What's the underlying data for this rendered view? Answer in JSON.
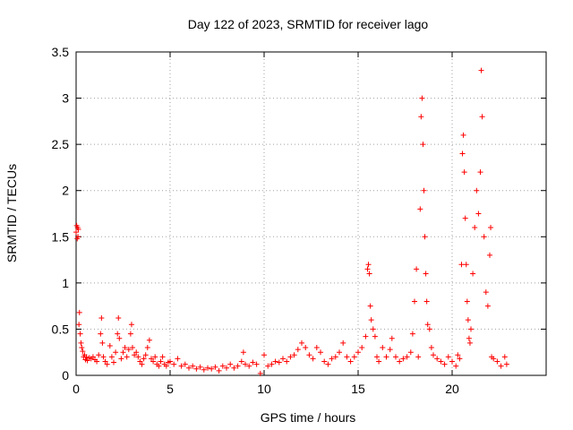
{
  "chart_data": {
    "type": "scatter",
    "title": "Day 122 of 2023, SRMTID for receiver lago",
    "xlabel": "GPS time / hours",
    "ylabel": "SRMTID / TECUs",
    "xlim": [
      0,
      25
    ],
    "ylim": [
      0,
      3.5
    ],
    "x_ticks": [
      0,
      5,
      10,
      15,
      20
    ],
    "x_tick_labels": [
      "0",
      "5",
      "10",
      "15",
      "20"
    ],
    "y_ticks": [
      0,
      0.5,
      1,
      1.5,
      2,
      2.5,
      3,
      3.5
    ],
    "y_tick_labels": [
      "0",
      "0.5",
      "1",
      "1.5",
      "2",
      "2.5",
      "3",
      "3.5"
    ],
    "grid": true,
    "marker": "+",
    "color": "#ff0000",
    "series": [
      {
        "name": "SRMTID",
        "points": [
          [
            0.0,
            1.55
          ],
          [
            0.03,
            1.62
          ],
          [
            0.06,
            1.48
          ],
          [
            0.08,
            1.6
          ],
          [
            0.1,
            1.5
          ],
          [
            0.12,
            1.58
          ],
          [
            0.15,
            0.55
          ],
          [
            0.18,
            0.68
          ],
          [
            0.22,
            0.45
          ],
          [
            0.26,
            0.35
          ],
          [
            0.3,
            0.3
          ],
          [
            0.35,
            0.26
          ],
          [
            0.4,
            0.2
          ],
          [
            0.45,
            0.22
          ],
          [
            0.5,
            0.17
          ],
          [
            0.55,
            0.2
          ],
          [
            0.6,
            0.16
          ],
          [
            0.7,
            0.19
          ],
          [
            0.8,
            0.18
          ],
          [
            0.9,
            0.2
          ],
          [
            1.0,
            0.17
          ],
          [
            1.1,
            0.15
          ],
          [
            1.2,
            0.22
          ],
          [
            1.3,
            0.45
          ],
          [
            1.35,
            0.62
          ],
          [
            1.4,
            0.35
          ],
          [
            1.45,
            0.2
          ],
          [
            1.55,
            0.15
          ],
          [
            1.65,
            0.12
          ],
          [
            1.8,
            0.32
          ],
          [
            1.9,
            0.2
          ],
          [
            2.0,
            0.14
          ],
          [
            2.1,
            0.25
          ],
          [
            2.2,
            0.45
          ],
          [
            2.25,
            0.62
          ],
          [
            2.3,
            0.4
          ],
          [
            2.4,
            0.18
          ],
          [
            2.5,
            0.25
          ],
          [
            2.6,
            0.3
          ],
          [
            2.7,
            0.2
          ],
          [
            2.8,
            0.28
          ],
          [
            2.9,
            0.45
          ],
          [
            2.95,
            0.55
          ],
          [
            3.0,
            0.3
          ],
          [
            3.1,
            0.22
          ],
          [
            3.2,
            0.25
          ],
          [
            3.3,
            0.2
          ],
          [
            3.4,
            0.15
          ],
          [
            3.5,
            0.12
          ],
          [
            3.6,
            0.18
          ],
          [
            3.7,
            0.22
          ],
          [
            3.8,
            0.3
          ],
          [
            3.9,
            0.38
          ],
          [
            4.0,
            0.18
          ],
          [
            4.1,
            0.15
          ],
          [
            4.2,
            0.2
          ],
          [
            4.3,
            0.12
          ],
          [
            4.4,
            0.1
          ],
          [
            4.5,
            0.15
          ],
          [
            4.6,
            0.2
          ],
          [
            4.7,
            0.12
          ],
          [
            4.8,
            0.1
          ],
          [
            4.9,
            0.14
          ],
          [
            5.0,
            0.15
          ],
          [
            5.2,
            0.12
          ],
          [
            5.4,
            0.18
          ],
          [
            5.6,
            0.1
          ],
          [
            5.8,
            0.12
          ],
          [
            6.0,
            0.08
          ],
          [
            6.2,
            0.1
          ],
          [
            6.4,
            0.07
          ],
          [
            6.6,
            0.09
          ],
          [
            6.8,
            0.06
          ],
          [
            7.0,
            0.08
          ],
          [
            7.2,
            0.07
          ],
          [
            7.4,
            0.09
          ],
          [
            7.6,
            0.05
          ],
          [
            7.8,
            0.1
          ],
          [
            8.0,
            0.08
          ],
          [
            8.2,
            0.12
          ],
          [
            8.4,
            0.08
          ],
          [
            8.6,
            0.1
          ],
          [
            8.8,
            0.15
          ],
          [
            8.9,
            0.25
          ],
          [
            9.0,
            0.12
          ],
          [
            9.2,
            0.1
          ],
          [
            9.4,
            0.14
          ],
          [
            9.6,
            0.12
          ],
          [
            9.8,
            0.02
          ],
          [
            10.0,
            0.22
          ],
          [
            10.2,
            0.1
          ],
          [
            10.4,
            0.12
          ],
          [
            10.6,
            0.15
          ],
          [
            10.8,
            0.14
          ],
          [
            11.0,
            0.18
          ],
          [
            11.2,
            0.15
          ],
          [
            11.4,
            0.2
          ],
          [
            11.6,
            0.22
          ],
          [
            11.8,
            0.28
          ],
          [
            12.0,
            0.35
          ],
          [
            12.2,
            0.3
          ],
          [
            12.4,
            0.22
          ],
          [
            12.6,
            0.18
          ],
          [
            12.8,
            0.3
          ],
          [
            13.0,
            0.25
          ],
          [
            13.2,
            0.15
          ],
          [
            13.4,
            0.12
          ],
          [
            13.6,
            0.18
          ],
          [
            13.8,
            0.2
          ],
          [
            14.0,
            0.25
          ],
          [
            14.2,
            0.35
          ],
          [
            14.4,
            0.2
          ],
          [
            14.6,
            0.15
          ],
          [
            14.8,
            0.2
          ],
          [
            15.0,
            0.25
          ],
          [
            15.2,
            0.3
          ],
          [
            15.4,
            0.42
          ],
          [
            15.5,
            1.15
          ],
          [
            15.55,
            1.2
          ],
          [
            15.6,
            1.1
          ],
          [
            15.65,
            0.75
          ],
          [
            15.7,
            0.6
          ],
          [
            15.8,
            0.5
          ],
          [
            15.9,
            0.42
          ],
          [
            16.0,
            0.2
          ],
          [
            16.1,
            0.15
          ],
          [
            16.3,
            0.3
          ],
          [
            16.5,
            0.2
          ],
          [
            16.7,
            0.28
          ],
          [
            16.8,
            0.4
          ],
          [
            17.0,
            0.2
          ],
          [
            17.2,
            0.15
          ],
          [
            17.4,
            0.18
          ],
          [
            17.6,
            0.2
          ],
          [
            17.8,
            0.25
          ],
          [
            17.9,
            0.45
          ],
          [
            18.0,
            0.8
          ],
          [
            18.1,
            1.15
          ],
          [
            18.2,
            0.2
          ],
          [
            18.3,
            1.8
          ],
          [
            18.35,
            2.8
          ],
          [
            18.4,
            3.0
          ],
          [
            18.45,
            2.5
          ],
          [
            18.5,
            2.0
          ],
          [
            18.55,
            1.5
          ],
          [
            18.6,
            1.1
          ],
          [
            18.65,
            0.8
          ],
          [
            18.7,
            0.55
          ],
          [
            18.8,
            0.5
          ],
          [
            18.9,
            0.3
          ],
          [
            19.0,
            0.22
          ],
          [
            19.2,
            0.18
          ],
          [
            19.4,
            0.15
          ],
          [
            19.6,
            0.12
          ],
          [
            19.8,
            0.2
          ],
          [
            20.0,
            0.15
          ],
          [
            20.2,
            0.1
          ],
          [
            20.3,
            0.22
          ],
          [
            20.4,
            0.18
          ],
          [
            20.5,
            1.2
          ],
          [
            20.55,
            2.4
          ],
          [
            20.6,
            2.6
          ],
          [
            20.65,
            2.2
          ],
          [
            20.7,
            1.7
          ],
          [
            20.75,
            1.2
          ],
          [
            20.8,
            0.8
          ],
          [
            20.85,
            0.6
          ],
          [
            20.9,
            0.4
          ],
          [
            20.95,
            0.35
          ],
          [
            21.0,
            0.5
          ],
          [
            21.1,
            1.1
          ],
          [
            21.2,
            1.6
          ],
          [
            21.3,
            2.0
          ],
          [
            21.4,
            1.75
          ],
          [
            21.5,
            2.2
          ],
          [
            21.55,
            3.3
          ],
          [
            21.6,
            2.8
          ],
          [
            21.7,
            1.5
          ],
          [
            21.8,
            0.9
          ],
          [
            21.9,
            0.75
          ],
          [
            22.0,
            1.3
          ],
          [
            22.05,
            1.6
          ],
          [
            22.1,
            0.2
          ],
          [
            22.2,
            0.18
          ],
          [
            22.4,
            0.15
          ],
          [
            22.6,
            0.1
          ],
          [
            22.8,
            0.2
          ],
          [
            22.9,
            0.12
          ]
        ]
      }
    ]
  }
}
